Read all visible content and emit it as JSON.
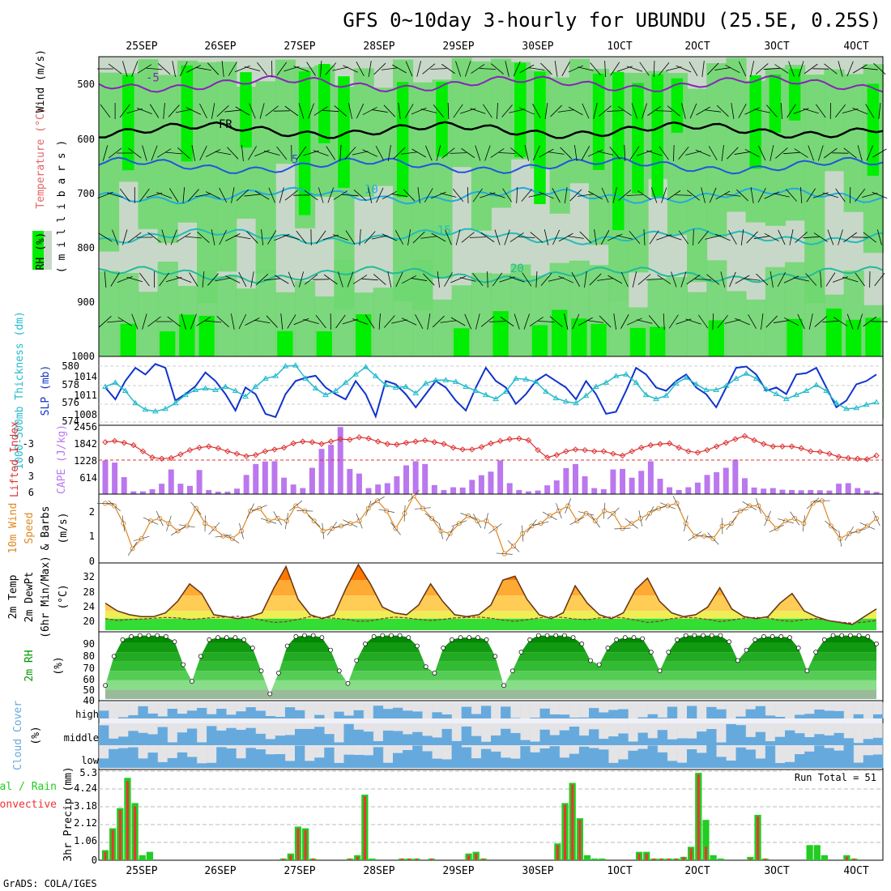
{
  "title": "GFS 0~10day 3-hourly for UBUNDU (25.5E, 0.25S)",
  "credit": "GrADS: COLA/IGES",
  "dates": [
    "25SEP",
    "26SEP",
    "27SEP",
    "28SEP",
    "29SEP",
    "30SEP",
    "1OCT",
    "2OCT",
    "3OCT",
    "4OCT"
  ],
  "colors": {
    "rh_light": "#c8d8c8",
    "rh_mid": "#6fd86f",
    "rh_high": "#00ee00",
    "slp": "#1133cc",
    "thickness": "#22bbcc",
    "lifted_index": "#dd3333",
    "cape": "#bb77ee",
    "wind10m": "#dd8822",
    "cloud": "#66aadd",
    "precip_total": "#22cc22",
    "precip_conv": "#ee3333",
    "rh2m": "#009900",
    "temp_fill": "#ff7f00"
  },
  "panels": {
    "upper": {
      "y_label_rh": "RH (%)",
      "y_label_temp": "Temperature (°C)",
      "y_label_wind": "Wind (m/s)",
      "y_label_mb": "( m i l l i b a r s )",
      "y_ticks": [
        "500",
        "600",
        "700",
        "800",
        "900",
        "1000"
      ],
      "isotherm_labels": [
        "-5",
        "FR",
        "5",
        "10",
        "15",
        "20"
      ]
    },
    "slp": {
      "left_label": "1000-500mb Thickness (dm)",
      "right_label": "SLP (mb)",
      "left_ticks": [
        "580",
        "578",
        "576",
        "574"
      ],
      "right_ticks": [
        "1014",
        "1011",
        "1008"
      ]
    },
    "cape": {
      "left_label": "Lifted Index",
      "right_label": "CAPE (J/kg)",
      "left_ticks": [
        "-3",
        "0",
        "3",
        "6"
      ],
      "right_ticks": [
        "2456",
        "1842",
        "1228",
        "614"
      ]
    },
    "wind10m": {
      "label_1": "10m Wind",
      "label_2": "Speed",
      "label_3": "& Barbs",
      "unit": "(m/s)",
      "ticks": [
        "2",
        "1",
        "0"
      ]
    },
    "temp2m": {
      "label_1": "2m Temp",
      "label_2": "2m DewPt",
      "label_3": "(6hr Min/Max)",
      "unit": "(°C)",
      "ticks": [
        "32",
        "28",
        "24",
        "20"
      ]
    },
    "rh2m": {
      "label": "2m RH",
      "unit": "(%)",
      "ticks": [
        "90",
        "80",
        "70",
        "60",
        "50",
        "40"
      ]
    },
    "cloud": {
      "label": "Cloud Cover",
      "unit": "(%)",
      "levels": [
        "high",
        "middle",
        "low"
      ]
    },
    "precip": {
      "label_total": "Total / Rain",
      "label_conv": "Convective",
      "y_label": "3hr Precip (mm)",
      "ticks": [
        "5.3",
        "4.24",
        "3.18",
        "2.12",
        "1.06",
        "0"
      ],
      "run_total": "Run Total = 51"
    }
  },
  "chart_data": [
    {
      "type": "heatmap",
      "name": "upper-air cross-section",
      "x": [
        "25SEP",
        "26SEP",
        "27SEP",
        "28SEP",
        "29SEP",
        "30SEP",
        "1OCT",
        "2OCT",
        "3OCT",
        "4OCT"
      ],
      "y_axis": "pressure (millibars)",
      "ylim": [
        1000,
        450
      ],
      "isotherms": [
        {
          "label": "-5",
          "pressure_mb": 500
        },
        {
          "label": "FR",
          "pressure_mb": 585
        },
        {
          "label": "5",
          "pressure_mb": 650
        },
        {
          "label": "10",
          "pressure_mb": 705
        },
        {
          "label": "15",
          "pressure_mb": 780
        },
        {
          "label": "20",
          "pressure_mb": 850
        }
      ]
    },
    {
      "type": "line",
      "name": "SLP and 1000-500mb thickness",
      "series": [
        {
          "name": "SLP (mb)",
          "ylim": [
            1006.5,
            1016.5
          ],
          "values": [
            1012,
            1010.2,
            1013,
            1015,
            1014,
            1015.6,
            1015,
            1010,
            1011,
            1012.2,
            1014.3,
            1013,
            1011,
            1008.5,
            1012,
            1011,
            1008,
            1007.5,
            1011,
            1013,
            1013.5,
            1013.8,
            1012,
            1011,
            1010.2,
            1013,
            1011,
            1007.6,
            1013,
            1012.5,
            1011,
            1009,
            1011,
            1013,
            1012,
            1010,
            1008.5,
            1012,
            1015,
            1013,
            1012,
            1009.5,
            1011,
            1013,
            1014,
            1013,
            1012,
            1010.2,
            1013,
            1011,
            1008,
            1008.3,
            1011.5,
            1015,
            1014,
            1012,
            1011.5,
            1013,
            1014,
            1012,
            1011,
            1009,
            1012,
            1015,
            1015.2,
            1014,
            1011.5,
            1012,
            1011,
            1014,
            1014.2,
            1015,
            1012,
            1009,
            1010,
            1012.5,
            1013,
            1014
          ]
        },
        {
          "name": "1000-500mb Thickness (dm)",
          "ylim": [
            573.5,
            581.5
          ],
          "values": [
            578,
            578.5,
            577.5,
            576,
            575.2,
            575,
            575.3,
            576,
            577,
            577.6,
            577.8,
            577.6,
            578,
            577.5,
            576.8,
            578,
            579,
            579.3,
            580.5,
            580.6,
            579,
            577.8,
            577,
            577.5,
            578.5,
            579.5,
            580.4,
            579.3,
            578.2,
            577.9,
            578,
            577.2,
            578.4,
            578.8,
            578.8,
            578.6,
            578,
            577.5,
            577,
            576.5,
            577.4,
            579,
            578.9,
            578.6,
            577.4,
            576.6,
            576.2,
            576,
            576.9,
            578,
            578.5,
            579.3,
            579.5,
            578.5,
            577,
            576.5,
            576.9,
            578.4,
            579.1,
            578.3,
            577.6,
            577.6,
            578.1,
            579,
            579.6,
            579,
            577.7,
            577.1,
            576.5,
            577,
            577.5,
            578.2,
            577.5,
            576,
            575.3,
            575.4,
            575.8,
            576.1
          ]
        }
      ]
    },
    {
      "type": "bar",
      "name": "CAPE and Lifted Index",
      "series": [
        {
          "name": "CAPE (J/kg)",
          "ylim": [
            0,
            2456
          ],
          "values": [
            1228,
            1150,
            620,
            100,
            100,
            180,
            380,
            900,
            380,
            300,
            880,
            150,
            90,
            90,
            200,
            700,
            1100,
            1190,
            1200,
            600,
            350,
            220,
            960,
            1650,
            1800,
            2450,
            920,
            750,
            220,
            350,
            400,
            650,
            1050,
            1200,
            1100,
            330,
            150,
            250,
            240,
            520,
            690,
            820,
            1230,
            400,
            150,
            100,
            130,
            320,
            500,
            950,
            1100,
            650,
            220,
            180,
            900,
            920,
            600,
            850,
            1200,
            560,
            250,
            150,
            250,
            420,
            700,
            800,
            960,
            1260,
            580,
            240,
            200,
            220,
            160,
            150,
            140,
            150,
            140,
            130,
            380,
            400,
            220,
            130,
            80
          ]
        },
        {
          "name": "Lifted Index",
          "ylim": [
            6,
            -5
          ],
          "values": [
            -2.5,
            -2.7,
            -2.4,
            -2,
            -1,
            0,
            0.2,
            0.1,
            -0.5,
            -1.2,
            -1.6,
            -1.8,
            -1.5,
            -1,
            -0.6,
            -0.2,
            -0.4,
            -1,
            -1.3,
            -1.6,
            -2.3,
            -2.6,
            -2.5,
            -2.2,
            -2.6,
            -3,
            -2.9,
            -3.3,
            -3.1,
            -2.6,
            -2.2,
            -2.1,
            -2.4,
            -2.6,
            -2.8,
            -2.5,
            -2.2,
            -1.6,
            -1.3,
            -1.3,
            -1.7,
            -2.3,
            -2.7,
            -3,
            -3.1,
            -2.8,
            -1.2,
            0,
            -0.4,
            -1,
            -1.3,
            -1.2,
            -1,
            -1,
            -0.6,
            -0.3,
            -1,
            -1.6,
            -2,
            -2.2,
            -2.3,
            -1.6,
            -1,
            -0.8,
            -1.2,
            -1.8,
            -2.4,
            -3,
            -3.5,
            -2.8,
            -2.2,
            -1.8,
            -1.8,
            -1.8,
            -1.5,
            -1,
            -0.9,
            -0.6,
            -0.1,
            0.1,
            0.2,
            0.3,
            -0.3
          ]
        }
      ]
    },
    {
      "type": "line",
      "name": "10m wind speed",
      "ylim": [
        0,
        2.6
      ],
      "values": [
        2.3,
        2.2,
        1.5,
        0.5,
        0.9,
        1.6,
        1.7,
        1.5,
        1.2,
        1.4,
        2.1,
        1.5,
        1.3,
        1,
        0.9,
        1.2,
        2,
        2.1,
        1.6,
        1.7,
        1.6,
        2.2,
        2,
        1.6,
        1.2,
        1.3,
        1.4,
        1.5,
        1.6,
        2.1,
        2.4,
        2,
        1.3,
        1.9,
        2.6,
        2.1,
        1.7,
        1.2,
        1.1,
        1.5,
        1.8,
        1.6,
        1.6,
        1.3,
        0.3,
        0.6,
        1.1,
        1.4,
        1.5,
        1.8,
        2,
        2.2,
        1.6,
        1.9,
        1.6,
        2,
        1.9,
        1.3,
        1.5,
        1.7,
        1.9,
        2.1,
        2.2,
        2.3,
        1.5,
        1,
        1,
        0.9,
        1.4,
        1.5,
        2,
        2.2,
        2.2,
        1.7,
        1.3,
        1.6,
        1.7,
        1.5,
        2.3,
        2.4,
        1.4,
        0.9,
        1.1,
        1.2,
        1.4,
        1.7
      ]
    },
    {
      "type": "area",
      "name": "2m temperature and dewpoint",
      "ylim": [
        17,
        34
      ],
      "series": [
        {
          "name": "2m Temp",
          "values": [
            24,
            22,
            21,
            20.5,
            20.5,
            21.5,
            24.5,
            29,
            26.5,
            21,
            20.5,
            20,
            20.5,
            21.5,
            28,
            33.5,
            25,
            21,
            20,
            21,
            28,
            34,
            29,
            23,
            21.5,
            21,
            23.5,
            29,
            24.5,
            21,
            20.5,
            21,
            23.5,
            30,
            31,
            25,
            21,
            20,
            21.5,
            28.5,
            24,
            21,
            20,
            21.5,
            27.5,
            30.5,
            24.5,
            21.5,
            20.5,
            21,
            23,
            28,
            22.5,
            20.5,
            20,
            20.5,
            24,
            26.5,
            22,
            20.5,
            19.5,
            19,
            18.5,
            20.5,
            22.5
          ]
        },
        {
          "name": "2m DewPt",
          "values": [
            20,
            19.5,
            19.8,
            19.9,
            20.1,
            20.3,
            20.2,
            19.8,
            20,
            20.3,
            20.4,
            20.6,
            20.2,
            19.6,
            19,
            19.2,
            19.8,
            20.5,
            20.3,
            20.1,
            19.8,
            19.3,
            19.4,
            20,
            20.4,
            20.2,
            19.8,
            19.5,
            19.8,
            20.2,
            20.3,
            20.4,
            20.1,
            19.6,
            19.3,
            19.7,
            20.2,
            20.5,
            20.3,
            19.9,
            19.7,
            20.2,
            20.4,
            20.2,
            19.6,
            19,
            19.3,
            20,
            20.3,
            20.2,
            19.8,
            19.2,
            19.6,
            20.1,
            20.3,
            20.2,
            19.5,
            19.3,
            19.7,
            20,
            19.5,
            19.1,
            18.8,
            19.1,
            19.5
          ]
        }
      ]
    },
    {
      "type": "area",
      "name": "2m relative humidity",
      "ylim": [
        35,
        98
      ],
      "values": [
        48,
        76,
        92,
        95,
        96,
        96,
        96,
        95,
        90,
        68,
        52,
        76,
        92,
        94,
        94,
        94,
        92,
        84,
        62,
        40,
        60,
        86,
        95,
        96,
        96,
        94,
        82,
        62,
        50,
        72,
        88,
        95,
        96,
        96,
        96,
        94,
        86,
        66,
        60,
        84,
        92,
        94,
        94,
        94,
        92,
        76,
        48,
        62,
        80,
        92,
        96,
        96,
        96,
        96,
        94,
        88,
        72,
        68,
        84,
        92,
        94,
        94,
        93,
        80,
        62,
        80,
        92,
        96,
        96,
        96,
        96,
        96,
        90,
        72,
        82,
        92,
        95,
        95,
        95,
        94,
        84,
        62,
        80,
        92,
        96,
        96,
        96,
        96,
        95,
        88
      ]
    },
    {
      "type": "heatmap",
      "name": "cloud cover",
      "rows": [
        "high",
        "middle",
        "low"
      ]
    },
    {
      "type": "bar",
      "name": "3hr precipitation",
      "ylim": [
        0,
        5.3
      ],
      "run_total": 51,
      "series": [
        {
          "name": "Total / Rain",
          "values": [
            0.6,
            1.9,
            3.1,
            4.9,
            3.4,
            0.3,
            0.5,
            0,
            0,
            0,
            0,
            0,
            0,
            0,
            0,
            0,
            0,
            0,
            0,
            0,
            0,
            0,
            0,
            0,
            0.1,
            0.4,
            2,
            1.9,
            0.1,
            0,
            0,
            0,
            0,
            0.1,
            0.3,
            3.9,
            0.1,
            0,
            0,
            0,
            0.1,
            0.1,
            0.1,
            0,
            0.1,
            0,
            0,
            0,
            0,
            0.4,
            0.5,
            0.1,
            0,
            0,
            0,
            0,
            0,
            0,
            0,
            0,
            0,
            1,
            3.4,
            4.6,
            2.5,
            0.3,
            0.1,
            0.1,
            0,
            0,
            0,
            0,
            0.5,
            0.5,
            0.1,
            0.1,
            0.1,
            0.1,
            0.2,
            0.8,
            5.2,
            2.4,
            0.3,
            0.1,
            0,
            0,
            0,
            0.2,
            2.7,
            0.1,
            0,
            0,
            0,
            0,
            0,
            0.9,
            0.9,
            0.3,
            0,
            0,
            0.3,
            0.1,
            0,
            0,
            0
          ]
        },
        {
          "name": "Convective",
          "values": [
            0.5,
            1.8,
            3,
            4.7,
            3.2,
            0,
            0,
            0,
            0,
            0,
            0,
            0,
            0,
            0,
            0,
            0,
            0,
            0,
            0,
            0,
            0,
            0,
            0,
            0,
            0.1,
            0.3,
            1.9,
            1.8,
            0.1,
            0,
            0,
            0,
            0,
            0.1,
            0.2,
            3.8,
            0,
            0,
            0,
            0,
            0.1,
            0.1,
            0.1,
            0,
            0.1,
            0,
            0,
            0,
            0,
            0.3,
            0.4,
            0.1,
            0,
            0,
            0,
            0,
            0,
            0,
            0,
            0,
            0,
            0.9,
            3.3,
            4.5,
            2.4,
            0,
            0,
            0,
            0,
            0,
            0,
            0,
            0.4,
            0.4,
            0.1,
            0.1,
            0.1,
            0.1,
            0.2,
            0.7,
            5.1,
            0.8,
            0,
            0,
            0,
            0,
            0,
            0.1,
            2.6,
            0.1,
            0,
            0,
            0,
            0,
            0,
            0,
            0,
            0,
            0,
            0,
            0.2,
            0.1,
            0,
            0,
            0
          ]
        }
      ]
    }
  ]
}
